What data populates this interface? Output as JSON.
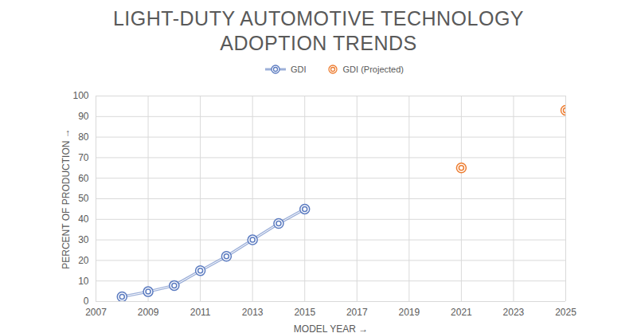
{
  "chart_data": {
    "type": "line",
    "title": "LIGHT-DUTY AUTOMOTIVE TECHNOLOGY ADOPTION TRENDS",
    "x_label": "MODEL YEAR",
    "y_label": "PERCENT OF PRODUCTION",
    "x": [
      2008,
      2009,
      2010,
      2011,
      2012,
      2013,
      2014,
      2015,
      2021,
      2025
    ],
    "series": [
      {
        "name": "GDI",
        "type": "line",
        "color": "#5b7bc0",
        "marker": "circle",
        "line_style": "solid",
        "values": [
          2.3,
          4.8,
          7.8,
          15,
          22,
          30,
          38,
          45,
          null,
          null
        ]
      },
      {
        "name": "GDI (Projected)",
        "type": "scatter",
        "color": "#ed7d31",
        "marker": "circle",
        "values": [
          null,
          null,
          null,
          null,
          null,
          null,
          null,
          null,
          65,
          93
        ]
      }
    ],
    "xlim": [
      2007,
      2025
    ],
    "xticks": [
      2007,
      2009,
      2011,
      2013,
      2015,
      2017,
      2019,
      2021,
      2023,
      2025
    ],
    "ylim": [
      0,
      100
    ],
    "yticks": [
      0,
      10,
      20,
      30,
      40,
      50,
      60,
      70,
      80,
      90,
      100
    ],
    "grid": true,
    "legend": "top"
  }
}
